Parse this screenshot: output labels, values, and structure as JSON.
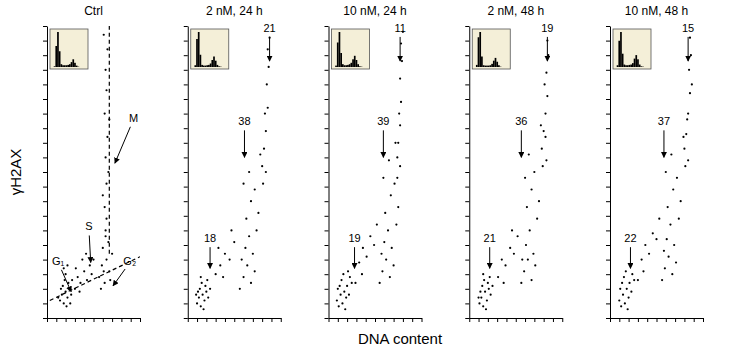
{
  "chart_data": [
    {
      "type": "scatter",
      "title": "Ctrl",
      "ylabel": "γH2AX",
      "color": "#000000",
      "marker": "dot",
      "grid": false,
      "tick_labels": false,
      "xlim": [
        0,
        100
      ],
      "ylim": [
        0,
        100
      ],
      "xticks": [
        0,
        10,
        20,
        30,
        40,
        50,
        60,
        70,
        80,
        90,
        100
      ],
      "yticks": [
        0,
        5,
        10,
        15,
        20,
        25,
        30,
        35,
        40,
        45,
        50,
        55,
        60,
        65,
        70,
        75,
        80,
        85,
        90,
        95,
        100
      ],
      "x": [
        14,
        16,
        18,
        20,
        22,
        17,
        19,
        21,
        24,
        15,
        23,
        26,
        12,
        25,
        20,
        18,
        27,
        22,
        30,
        33,
        36,
        40,
        43,
        46,
        38,
        48,
        35,
        42,
        50,
        31,
        56,
        59,
        62,
        64,
        67,
        60,
        58,
        66,
        70,
        63,
        68,
        61,
        62,
        64,
        63,
        65,
        62,
        64,
        63,
        65,
        61,
        66,
        60,
        67,
        64,
        63
      ],
      "values": [
        6,
        8,
        5,
        9,
        7,
        11,
        13,
        4,
        10,
        10,
        12,
        8,
        7,
        5,
        15,
        17,
        13,
        18,
        10,
        14,
        12,
        16,
        13,
        18,
        20,
        15,
        9,
        22,
        20,
        17,
        14,
        18,
        12,
        20,
        16,
        24,
        10,
        26,
        22,
        30,
        13,
        16,
        38,
        46,
        55,
        62,
        70,
        78,
        85,
        92,
        97,
        50,
        42,
        68,
        34,
        28
      ],
      "lines": [
        {
          "x": [
            3,
            100
          ],
          "values": [
            6,
            21
          ],
          "line_style": "dashed"
        },
        {
          "x": [
            67,
            67
          ],
          "values": [
            22,
            100
          ],
          "line_style": "dashed"
        }
      ],
      "annotations": [
        {
          "text": "G₁",
          "x": 12,
          "y": 19,
          "arrow_x": 26,
          "arrow_y": 9
        },
        {
          "text": "S",
          "x": 45,
          "y": 31,
          "arrow_x": 47,
          "arrow_y": 19
        },
        {
          "text": "G₂",
          "x": 89,
          "y": 19,
          "arrow_x": 71,
          "arrow_y": 11
        },
        {
          "text": "M",
          "x": 93,
          "y": 68,
          "arrow_x": 73,
          "arrow_y": 53
        }
      ],
      "inset": {
        "bins": [
          0,
          5,
          10,
          15,
          20,
          25,
          30,
          35,
          40,
          45,
          50,
          55,
          60,
          65,
          70,
          75,
          80,
          85,
          90,
          95,
          100
        ],
        "counts": [
          0,
          2,
          60,
          100,
          45,
          8,
          5,
          5,
          5,
          6,
          8,
          14,
          22,
          12,
          4,
          1,
          0,
          0,
          0,
          0
        ],
        "ylim": [
          0,
          100
        ]
      }
    },
    {
      "type": "scatter",
      "title": "2 nM, 24 h",
      "color": "#000000",
      "marker": "dot",
      "grid": false,
      "tick_labels": false,
      "xlim": [
        0,
        100
      ],
      "ylim": [
        0,
        100
      ],
      "xticks": [
        0,
        10,
        20,
        30,
        40,
        50,
        60,
        70,
        80,
        90,
        100
      ],
      "yticks": [
        0,
        5,
        10,
        15,
        20,
        25,
        30,
        35,
        40,
        45,
        50,
        55,
        60,
        65,
        70,
        75,
        80,
        85,
        90,
        95,
        100
      ],
      "x": [
        10,
        12,
        14,
        16,
        18,
        13,
        15,
        20,
        11,
        17,
        19,
        22,
        14,
        21,
        24,
        9,
        30,
        35,
        40,
        45,
        50,
        38,
        47,
        33,
        56,
        60,
        64,
        68,
        72,
        62,
        66,
        70,
        74,
        58,
        76,
        63,
        68,
        72,
        60,
        66,
        80,
        82,
        84,
        86,
        85,
        87,
        86,
        88,
        83,
        81,
        78,
        84
      ],
      "values": [
        5,
        7,
        4,
        8,
        6,
        10,
        12,
        9,
        9,
        3,
        11,
        7,
        14,
        13,
        10,
        8,
        15,
        18,
        22,
        20,
        26,
        14,
        30,
        24,
        10,
        14,
        18,
        12,
        16,
        24,
        28,
        22,
        30,
        20,
        36,
        34,
        40,
        44,
        46,
        50,
        52,
        58,
        64,
        72,
        80,
        86,
        92,
        96,
        70,
        46,
        56,
        50
      ],
      "annotations": [
        {
          "text": "21",
          "x": 88,
          "y": 99,
          "arrow_x": 88,
          "arrow_y": 88
        },
        {
          "text": "38",
          "x": 61,
          "y": 67,
          "arrow_x": 61,
          "arrow_y": 55
        },
        {
          "text": "18",
          "x": 24,
          "y": 27,
          "arrow_x": 24,
          "arrow_y": 17
        }
      ],
      "inset": {
        "bins": [
          0,
          5,
          10,
          15,
          20,
          25,
          30,
          35,
          40,
          45,
          50,
          55,
          60,
          65,
          70,
          75,
          80,
          85,
          90,
          95,
          100
        ],
        "counts": [
          0,
          5,
          80,
          100,
          35,
          6,
          4,
          4,
          5,
          6,
          10,
          20,
          30,
          18,
          6,
          2,
          1,
          0,
          0,
          0
        ],
        "ylim": [
          0,
          100
        ]
      }
    },
    {
      "type": "scatter",
      "title": "10 nM, 24 h",
      "xlabel": "DNA content",
      "color": "#000000",
      "marker": "dot",
      "grid": false,
      "tick_labels": false,
      "xlim": [
        0,
        100
      ],
      "ylim": [
        0,
        100
      ],
      "xticks": [
        0,
        10,
        20,
        30,
        40,
        50,
        60,
        70,
        80,
        90,
        100
      ],
      "yticks": [
        0,
        5,
        10,
        15,
        20,
        25,
        30,
        35,
        40,
        45,
        50,
        55,
        60,
        65,
        70,
        75,
        80,
        85,
        90,
        95,
        100
      ],
      "x": [
        9,
        11,
        13,
        15,
        17,
        19,
        12,
        14,
        16,
        20,
        22,
        18,
        23,
        10,
        25,
        21,
        29,
        33,
        37,
        41,
        45,
        49,
        36,
        52,
        55,
        58,
        62,
        66,
        70,
        60,
        64,
        68,
        73,
        57,
        75,
        61,
        67,
        71,
        59,
        65,
        74,
        75,
        77,
        78,
        77,
        79,
        78,
        80,
        76,
        74,
        72,
        77
      ],
      "values": [
        6,
        4,
        8,
        5,
        9,
        7,
        11,
        13,
        15,
        11,
        8,
        3,
        14,
        10,
        12,
        16,
        12,
        19,
        24,
        21,
        28,
        25,
        15,
        32,
        12,
        16,
        20,
        14,
        18,
        26,
        30,
        24,
        32,
        22,
        38,
        36,
        42,
        46,
        48,
        54,
        55,
        60,
        66,
        74,
        82,
        88,
        94,
        98,
        70,
        48,
        60,
        52
      ],
      "annotations": [
        {
          "text": "11",
          "x": 77,
          "y": 99,
          "arrow_x": 77,
          "arrow_y": 88
        },
        {
          "text": "39",
          "x": 59,
          "y": 67,
          "arrow_x": 59,
          "arrow_y": 55
        },
        {
          "text": "19",
          "x": 28,
          "y": 27,
          "arrow_x": 28,
          "arrow_y": 17
        }
      ],
      "inset": {
        "bins": [
          0,
          5,
          10,
          15,
          20,
          25,
          30,
          35,
          40,
          45,
          50,
          55,
          60,
          65,
          70,
          75,
          80,
          85,
          90,
          95,
          100
        ],
        "counts": [
          0,
          4,
          70,
          100,
          40,
          8,
          5,
          5,
          6,
          8,
          12,
          22,
          32,
          20,
          8,
          2,
          1,
          0,
          0,
          0
        ],
        "ylim": [
          0,
          100
        ]
      }
    },
    {
      "type": "scatter",
      "title": "2 nM, 48 h",
      "color": "#000000",
      "marker": "dot",
      "grid": false,
      "tick_labels": false,
      "xlim": [
        0,
        100
      ],
      "ylim": [
        0,
        100
      ],
      "xticks": [
        0,
        10,
        20,
        30,
        40,
        50,
        60,
        70,
        80,
        90,
        100
      ],
      "yticks": [
        0,
        5,
        10,
        15,
        20,
        25,
        30,
        35,
        40,
        45,
        50,
        55,
        60,
        65,
        70,
        75,
        80,
        85,
        90,
        95,
        100
      ],
      "x": [
        11,
        13,
        15,
        17,
        19,
        14,
        16,
        21,
        12,
        18,
        20,
        23,
        15,
        22,
        25,
        10,
        31,
        35,
        39,
        44,
        48,
        37,
        46,
        52,
        56,
        59,
        63,
        67,
        71,
        61,
        65,
        69,
        73,
        57,
        75,
        62,
        67,
        70,
        60,
        64,
        78,
        80,
        82,
        84,
        83,
        85,
        84,
        82,
        79,
        81,
        77,
        83
      ],
      "values": [
        5,
        7,
        4,
        9,
        6,
        11,
        13,
        10,
        9,
        3,
        12,
        8,
        15,
        14,
        11,
        7,
        14,
        20,
        18,
        24,
        22,
        12,
        30,
        28,
        12,
        16,
        20,
        13,
        18,
        25,
        30,
        22,
        34,
        20,
        40,
        38,
        44,
        50,
        48,
        56,
        58,
        64,
        70,
        76,
        84,
        90,
        95,
        62,
        52,
        80,
        66,
        54
      ],
      "annotations": [
        {
          "text": "19",
          "x": 84,
          "y": 99,
          "arrow_x": 84,
          "arrow_y": 88
        },
        {
          "text": "36",
          "x": 56,
          "y": 67,
          "arrow_x": 56,
          "arrow_y": 55
        },
        {
          "text": "21",
          "x": 22,
          "y": 27,
          "arrow_x": 22,
          "arrow_y": 17
        }
      ],
      "inset": {
        "bins": [
          0,
          5,
          10,
          15,
          20,
          25,
          30,
          35,
          40,
          45,
          50,
          55,
          60,
          65,
          70,
          75,
          80,
          85,
          90,
          95,
          100
        ],
        "counts": [
          0,
          6,
          85,
          100,
          30,
          5,
          4,
          4,
          4,
          5,
          9,
          18,
          26,
          15,
          5,
          1,
          0,
          0,
          0,
          0
        ],
        "ylim": [
          0,
          100
        ]
      }
    },
    {
      "type": "scatter",
      "title": "10 nM, 48 h",
      "color": "#000000",
      "marker": "dot",
      "grid": false,
      "tick_labels": false,
      "xlim": [
        0,
        100
      ],
      "ylim": [
        0,
        100
      ],
      "xticks": [
        0,
        10,
        20,
        30,
        40,
        50,
        60,
        70,
        80,
        90,
        100
      ],
      "yticks": [
        0,
        5,
        10,
        15,
        20,
        25,
        30,
        35,
        40,
        45,
        50,
        55,
        60,
        65,
        70,
        75,
        80,
        85,
        90,
        95,
        100
      ],
      "x": [
        10,
        12,
        14,
        16,
        18,
        20,
        13,
        15,
        17,
        21,
        23,
        19,
        24,
        11,
        26,
        22,
        30,
        34,
        38,
        42,
        46,
        50,
        36,
        53,
        56,
        59,
        63,
        67,
        71,
        61,
        65,
        69,
        74,
        58,
        76,
        62,
        68,
        72,
        60,
        66,
        80,
        82,
        84,
        86,
        85,
        87,
        86,
        83,
        81,
        79,
        84,
        88
      ],
      "values": [
        6,
        4,
        8,
        5,
        10,
        7,
        12,
        14,
        16,
        12,
        9,
        3,
        15,
        10,
        13,
        18,
        13,
        20,
        25,
        22,
        29,
        27,
        16,
        34,
        13,
        17,
        21,
        15,
        19,
        27,
        32,
        25,
        34,
        23,
        40,
        38,
        44,
        48,
        50,
        56,
        58,
        63,
        70,
        77,
        85,
        90,
        96,
        68,
        52,
        62,
        54,
        80
      ],
      "annotations": [
        {
          "text": "15",
          "x": 84,
          "y": 99,
          "arrow_x": 84,
          "arrow_y": 88
        },
        {
          "text": "37",
          "x": 58,
          "y": 67,
          "arrow_x": 58,
          "arrow_y": 55
        },
        {
          "text": "22",
          "x": 22,
          "y": 27,
          "arrow_x": 22,
          "arrow_y": 17
        }
      ],
      "inset": {
        "bins": [
          0,
          5,
          10,
          15,
          20,
          25,
          30,
          35,
          40,
          45,
          50,
          55,
          60,
          65,
          70,
          75,
          80,
          85,
          90,
          95,
          100
        ],
        "counts": [
          0,
          5,
          75,
          100,
          38,
          7,
          5,
          5,
          6,
          7,
          11,
          24,
          34,
          22,
          7,
          2,
          1,
          0,
          0,
          0
        ],
        "ylim": [
          0,
          100
        ]
      }
    }
  ]
}
